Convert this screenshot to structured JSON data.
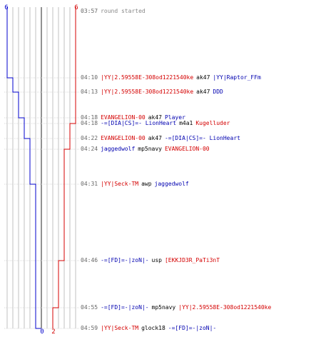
{
  "colors": {
    "red_team": "#d40000",
    "blue_team": "#0000cc",
    "grid": "#c0c0c0",
    "center": "#777777"
  },
  "chart": {
    "blue_start_label": "6",
    "red_start_label": "6",
    "blue_end_label": "0",
    "red_end_label": "2"
  },
  "events": [
    {
      "time": "03:57",
      "type": "system",
      "text": "round started"
    },
    {
      "time": "04:10",
      "killer": "|YY|2.59558E-308od1221540ke",
      "killer_team": "red",
      "weapon": "ak47",
      "victim": "|YY|Raptor_FFm",
      "victim_team": "blue"
    },
    {
      "time": "04:13",
      "killer": "|YY|2.59558E-308od1221540ke",
      "killer_team": "red",
      "weapon": "ak47",
      "victim": "DDD",
      "victim_team": "blue"
    },
    {
      "time": "04:18",
      "killer": "EVANGELION-00",
      "killer_team": "red",
      "weapon": "ak47",
      "victim": "Player",
      "victim_team": "blue"
    },
    {
      "time": "04:18",
      "killer": "-=[DIA|CS]=- LionHeart",
      "killer_team": "blue",
      "weapon": "m4a1",
      "victim": "Kugelluder",
      "victim_team": "red"
    },
    {
      "time": "04:22",
      "killer": "EVANGELION-00",
      "killer_team": "red",
      "weapon": "ak47",
      "victim": "-=[DIA|CS]=- LionHeart",
      "victim_team": "blue"
    },
    {
      "time": "04:24",
      "killer": "jaggedwolf",
      "killer_team": "blue",
      "weapon": "mp5navy",
      "victim": "EVANGELION-00",
      "victim_team": "red"
    },
    {
      "time": "04:31",
      "killer": "|YY|Seck-TM",
      "killer_team": "red",
      "weapon": "awp",
      "victim": "jaggedwolf",
      "victim_team": "blue"
    },
    {
      "time": "04:46",
      "killer": "-=[FD]=-|zoN|-",
      "killer_team": "blue",
      "weapon": "usp",
      "victim": "[EKKJD3R_PaTi3nT",
      "victim_team": "red"
    },
    {
      "time": "04:55",
      "killer": "-=[FD]=-|zoN|-",
      "killer_team": "blue",
      "weapon": "mp5navy",
      "victim": "|YY|2.59558E-308od1221540ke",
      "victim_team": "red"
    },
    {
      "time": "04:59",
      "killer": "|YY|Seck-TM",
      "killer_team": "red",
      "weapon": "glock18",
      "victim": "-=[FD]=-|zoN|-",
      "victim_team": "blue"
    }
  ]
}
